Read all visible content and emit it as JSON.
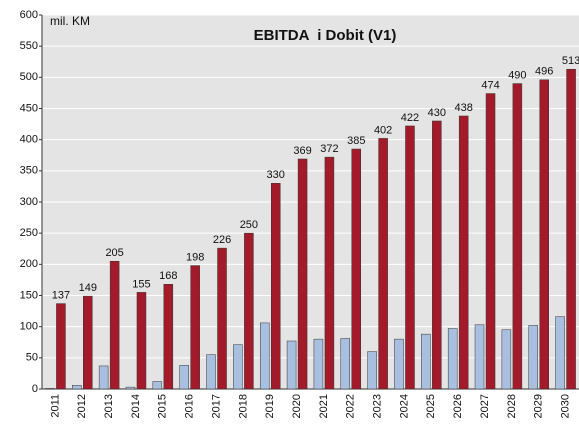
{
  "chart_data": {
    "type": "bar",
    "title": "EBITDA  i Dobit (V1)",
    "unit_label": "mil. KM",
    "categories": [
      "2011",
      "2012",
      "2013",
      "2014",
      "2015",
      "2016",
      "2017",
      "2018",
      "2019",
      "2020",
      "2021",
      "2022",
      "2023",
      "2024",
      "2025",
      "2026",
      "2027",
      "2028",
      "2029",
      "2030"
    ],
    "series": [
      {
        "color": "#a9bfe0",
        "values": [
          1,
          6,
          37,
          3,
          12,
          38,
          55,
          71,
          106,
          77,
          80,
          81,
          60,
          80,
          88,
          97,
          103,
          95,
          102,
          116
        ]
      },
      {
        "color": "#a31b2a",
        "values": [
          137,
          149,
          205,
          155,
          168,
          198,
          226,
          250,
          330,
          369,
          372,
          385,
          402,
          422,
          430,
          438,
          474,
          490,
          496,
          513
        ],
        "labels": true
      }
    ],
    "ylim": [
      0,
      600
    ],
    "yticks": [
      0,
      50,
      100,
      150,
      200,
      250,
      300,
      350,
      400,
      450,
      500,
      550,
      600
    ],
    "grid": true
  }
}
